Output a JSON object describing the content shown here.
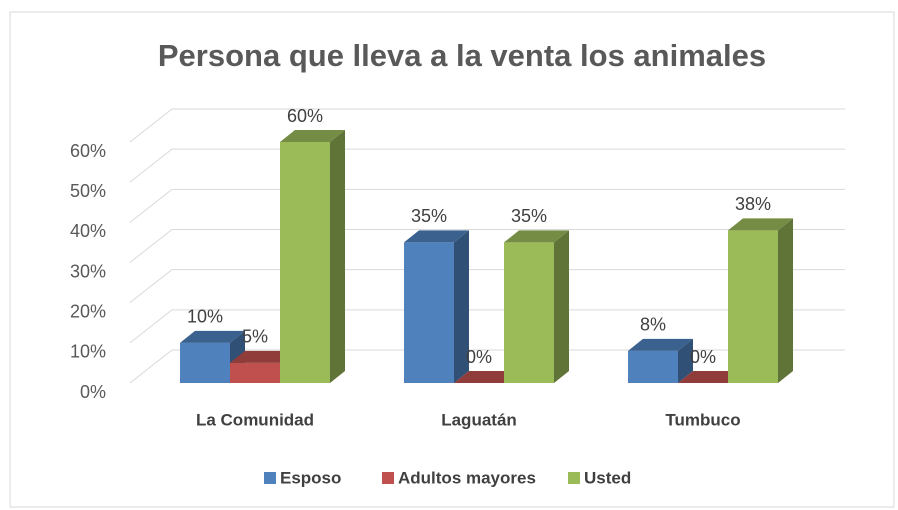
{
  "chart_data": {
    "type": "bar3d",
    "title": "Persona que lleva a la venta los animales",
    "categories": [
      "La Comunidad",
      "Laguatán",
      "Tumbuco"
    ],
    "series": [
      {
        "name": "Esposo",
        "color": "#4f81bd",
        "values": [
          10,
          35,
          8
        ],
        "value_labels": [
          "10%",
          "35%",
          "8%"
        ]
      },
      {
        "name": "Adultos mayores",
        "color": "#c0504d",
        "values": [
          5,
          0,
          0
        ],
        "value_labels": [
          "5%",
          "0%",
          "0%"
        ]
      },
      {
        "name": "Usted",
        "color": "#9bbb59",
        "values": [
          60,
          35,
          38
        ],
        "value_labels": [
          "60%",
          "35%",
          "38%"
        ]
      }
    ],
    "ylim": [
      0,
      60
    ],
    "yticks": [
      {
        "value": 0,
        "label": "0%"
      },
      {
        "value": 10,
        "label": "10%"
      },
      {
        "value": 20,
        "label": "20%"
      },
      {
        "value": 30,
        "label": "30%"
      },
      {
        "value": 40,
        "label": "40%"
      },
      {
        "value": 50,
        "label": "50%"
      },
      {
        "value": 60,
        "label": "60%"
      }
    ],
    "grid": true,
    "legend": "bottom"
  }
}
